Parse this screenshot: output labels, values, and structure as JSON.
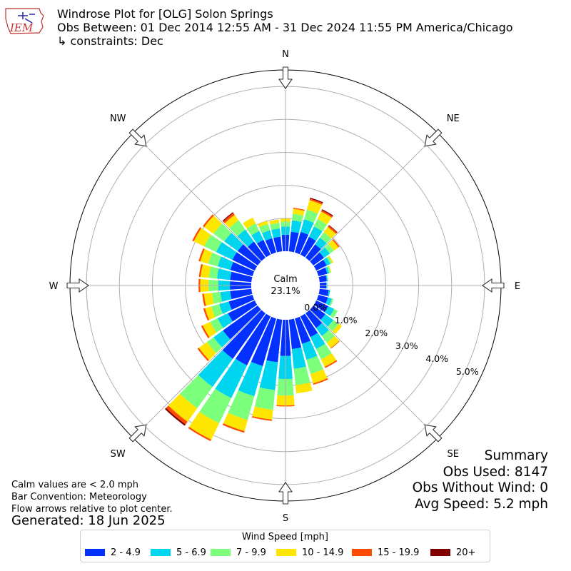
{
  "title": {
    "line1": "Windrose Plot for [OLG] Solon Springs",
    "line2": "Obs Between: 01 Dec 2014 12:55 AM - 31 Dec 2024 11:55 PM America/Chicago",
    "line3": "↳ constraints: Dec"
  },
  "logo": {
    "text": "IEM",
    "icon": "iowa-state-map-icon"
  },
  "notes": {
    "calm_note": "Calm values are < 2.0 mph",
    "bar_convention": "Bar Convention: Meteorology",
    "flow_note": "Flow arrows relative to plot center.",
    "generated": "Generated: 18 Jun 2025"
  },
  "summary": {
    "title": "Summary",
    "obs_used": "Obs Used: 8147",
    "obs_without_wind": "Obs Without Wind: 0",
    "avg_speed": "Avg Speed: 5.2 mph"
  },
  "legend": {
    "title": "Wind Speed [mph]",
    "items": [
      {
        "label": "2 - 4.9",
        "color": "#0230FF"
      },
      {
        "label": "5 - 6.9",
        "color": "#00D5F0"
      },
      {
        "label": "7 - 9.9",
        "color": "#7CFF7A"
      },
      {
        "label": "10 - 14.9",
        "color": "#FFE600"
      },
      {
        "label": "15 - 19.9",
        "color": "#FF4A00"
      },
      {
        "label": "20+",
        "color": "#800000"
      }
    ]
  },
  "chart_data": {
    "type": "windrose",
    "calm": {
      "label": "Calm",
      "value": "23.1%"
    },
    "compass_labels": [
      "N",
      "NE",
      "E",
      "SE",
      "S",
      "SW",
      "W",
      "NW"
    ],
    "radial_ticks": [
      "0.0%",
      "1.0%",
      "2.0%",
      "3.0%",
      "4.0%",
      "5.0%"
    ],
    "radial_values": [
      0,
      1,
      2,
      3,
      4,
      5
    ],
    "rlim": [
      0,
      5.5
    ],
    "grid": true,
    "directions_deg": [
      0,
      10,
      20,
      30,
      40,
      50,
      60,
      70,
      80,
      90,
      100,
      110,
      120,
      130,
      140,
      150,
      160,
      170,
      180,
      190,
      200,
      210,
      220,
      230,
      240,
      250,
      260,
      270,
      280,
      290,
      300,
      310,
      320,
      330,
      340,
      350
    ],
    "bins": [
      "2 - 4.9",
      "5 - 6.9",
      "7 - 9.9",
      "10 - 14.9",
      "15 - 19.9",
      "20+"
    ],
    "values": [
      [
        0.5,
        0.25,
        0.15,
        0.09,
        0.0,
        0.0
      ],
      [
        0.6,
        0.35,
        0.2,
        0.15,
        0.03,
        0.0
      ],
      [
        0.65,
        0.4,
        0.3,
        0.3,
        0.05,
        0.03
      ],
      [
        0.6,
        0.35,
        0.25,
        0.25,
        0.05,
        0.03
      ],
      [
        0.5,
        0.25,
        0.2,
        0.2,
        0.05,
        0.02
      ],
      [
        0.4,
        0.22,
        0.15,
        0.17,
        0.04,
        0.0
      ],
      [
        0.35,
        0.12,
        0.06,
        0.04,
        0.0,
        0.0
      ],
      [
        0.28,
        0.06,
        0.05,
        0.02,
        0.0,
        0.0
      ],
      [
        0.22,
        0.03,
        0.02,
        0.0,
        0.0,
        0.0
      ],
      [
        0.2,
        0.03,
        0.0,
        0.0,
        0.0,
        0.0
      ],
      [
        0.28,
        0.04,
        0.0,
        0.0,
        0.0,
        0.0
      ],
      [
        0.3,
        0.12,
        0.05,
        0.0,
        0.0,
        0.0
      ],
      [
        0.4,
        0.2,
        0.12,
        0.0,
        0.0,
        0.0
      ],
      [
        0.45,
        0.3,
        0.2,
        0.12,
        0.0,
        0.0
      ],
      [
        0.55,
        0.3,
        0.25,
        0.2,
        0.02,
        0.0
      ],
      [
        0.7,
        0.4,
        0.35,
        0.25,
        0.04,
        0.0
      ],
      [
        0.8,
        0.5,
        0.45,
        0.3,
        0.04,
        0.0
      ],
      [
        0.9,
        0.6,
        0.5,
        0.25,
        0.0,
        0.0
      ],
      [
        1.1,
        0.7,
        0.5,
        0.3,
        0.03,
        0.0
      ],
      [
        1.3,
        0.85,
        0.6,
        0.3,
        0.04,
        0.0
      ],
      [
        1.5,
        0.95,
        0.75,
        0.35,
        0.05,
        0.0
      ],
      [
        1.65,
        1.1,
        0.85,
        0.55,
        0.05,
        0.0
      ],
      [
        1.7,
        1.05,
        0.8,
        0.5,
        0.1,
        0.05
      ],
      [
        1.3,
        0.35,
        0.25,
        0.3,
        0.05,
        0.0
      ],
      [
        0.9,
        0.35,
        0.25,
        0.25,
        0.05,
        0.0
      ],
      [
        0.75,
        0.3,
        0.25,
        0.2,
        0.05,
        0.0
      ],
      [
        0.65,
        0.3,
        0.25,
        0.25,
        0.05,
        0.0
      ],
      [
        0.65,
        0.35,
        0.3,
        0.25,
        0.05,
        0.0
      ],
      [
        0.65,
        0.4,
        0.25,
        0.25,
        0.05,
        0.0
      ],
      [
        0.7,
        0.4,
        0.3,
        0.25,
        0.05,
        0.0
      ],
      [
        0.75,
        0.55,
        0.4,
        0.35,
        0.05,
        0.0
      ],
      [
        0.75,
        0.5,
        0.4,
        0.35,
        0.05,
        0.0
      ],
      [
        0.6,
        0.45,
        0.35,
        0.2,
        0.07,
        0.03
      ],
      [
        0.5,
        0.3,
        0.25,
        0.2,
        0.0,
        0.0
      ],
      [
        0.45,
        0.25,
        0.2,
        0.1,
        0.0,
        0.0
      ],
      [
        0.45,
        0.25,
        0.17,
        0.1,
        0.0,
        0.0
      ]
    ]
  }
}
